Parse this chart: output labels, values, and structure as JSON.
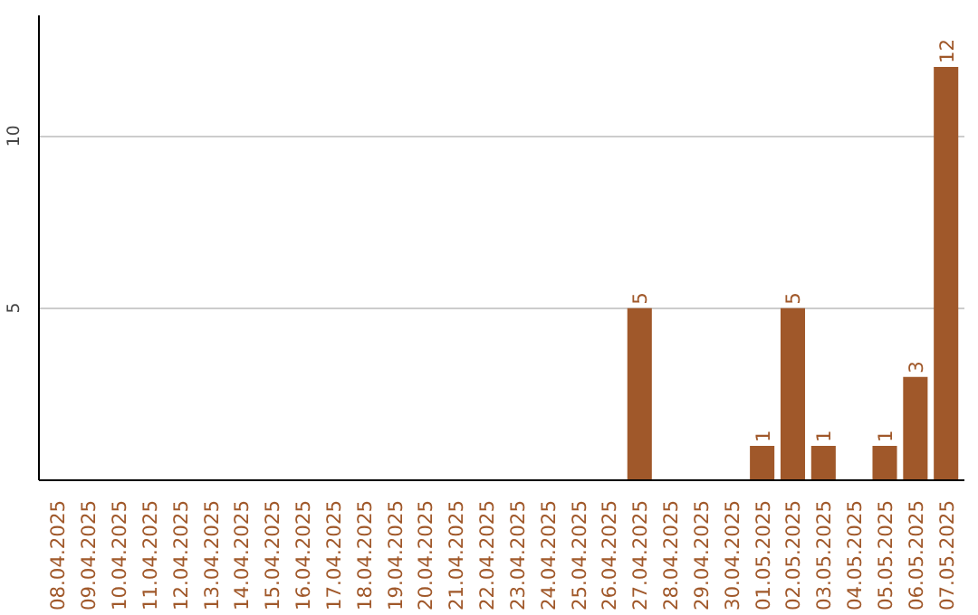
{
  "chart_data": {
    "type": "bar",
    "categories": [
      "08.04.2025",
      "09.04.2025",
      "10.04.2025",
      "11.04.2025",
      "12.04.2025",
      "13.04.2025",
      "14.04.2025",
      "15.04.2025",
      "16.04.2025",
      "17.04.2025",
      "18.04.2025",
      "19.04.2025",
      "20.04.2025",
      "21.04.2025",
      "22.04.2025",
      "23.04.2025",
      "24.04.2025",
      "25.04.2025",
      "26.04.2025",
      "27.04.2025",
      "28.04.2025",
      "29.04.2025",
      "30.04.2025",
      "01.05.2025",
      "02.05.2025",
      "03.05.2025",
      "04.05.2025",
      "05.05.2025",
      "06.05.2025",
      "07.05.2025"
    ],
    "values": [
      0,
      0,
      0,
      0,
      0,
      0,
      0,
      0,
      0,
      0,
      0,
      0,
      0,
      0,
      0,
      0,
      0,
      0,
      0,
      5,
      0,
      0,
      0,
      1,
      5,
      1,
      0,
      1,
      3,
      12
    ],
    "value_labels": [
      null,
      null,
      null,
      null,
      null,
      null,
      null,
      null,
      null,
      null,
      null,
      null,
      null,
      null,
      null,
      null,
      null,
      null,
      null,
      "5",
      null,
      null,
      null,
      "1",
      "5",
      "1",
      null,
      "1",
      "3",
      "12"
    ],
    "color": "#a0582a",
    "ylim": [
      0,
      13.5
    ],
    "yticks": [
      5,
      10
    ],
    "grid": "y"
  }
}
